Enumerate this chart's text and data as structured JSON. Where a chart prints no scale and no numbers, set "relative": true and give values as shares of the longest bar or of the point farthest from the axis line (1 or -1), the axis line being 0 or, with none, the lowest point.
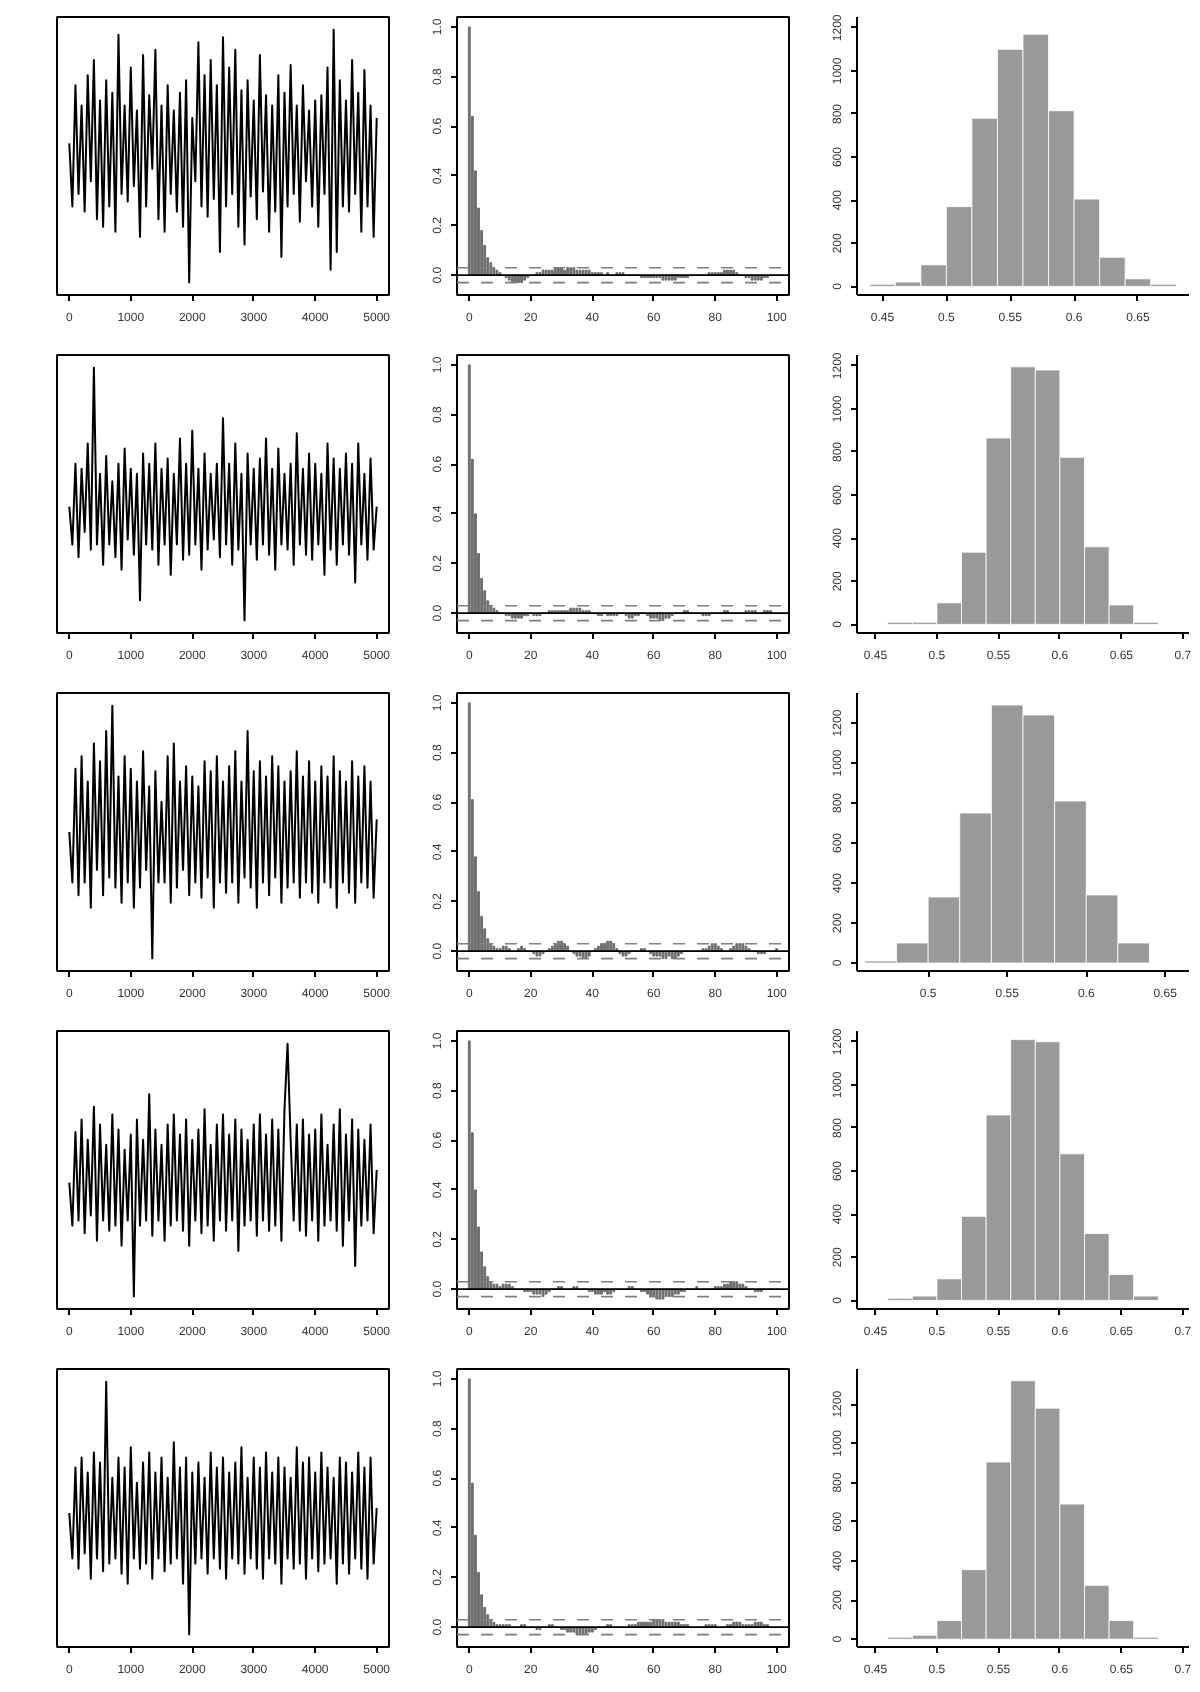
{
  "chart_data": [
    {
      "type": "line",
      "relative": true,
      "tick_labels": "x",
      "color": "#000000",
      "xlim": [
        -200,
        5200
      ],
      "xticks": [
        0,
        1000,
        2000,
        3000,
        4000,
        5000
      ],
      "x": [
        0,
        50,
        100,
        150,
        200,
        250,
        300,
        350,
        400,
        450,
        500,
        550,
        600,
        650,
        700,
        750,
        800,
        850,
        900,
        950,
        1000,
        1050,
        1100,
        1150,
        1200,
        1250,
        1300,
        1350,
        1400,
        1450,
        1500,
        1550,
        1600,
        1650,
        1700,
        1750,
        1800,
        1850,
        1900,
        1950,
        2000,
        2050,
        2100,
        2150,
        2200,
        2250,
        2300,
        2350,
        2400,
        2450,
        2500,
        2550,
        2600,
        2650,
        2700,
        2750,
        2800,
        2850,
        2900,
        2950,
        3000,
        3050,
        3100,
        3150,
        3200,
        3250,
        3300,
        3350,
        3400,
        3450,
        3500,
        3550,
        3600,
        3650,
        3700,
        3750,
        3800,
        3850,
        3900,
        3950,
        4000,
        4050,
        4100,
        4150,
        4200,
        4250,
        4300,
        4350,
        4400,
        4450,
        4500,
        4550,
        4600,
        4650,
        4700,
        4750,
        4800,
        4850,
        4900,
        4950,
        5000
      ],
      "values": [
        0.55,
        0.3,
        0.78,
        0.35,
        0.7,
        0.28,
        0.82,
        0.4,
        0.88,
        0.25,
        0.72,
        0.22,
        0.8,
        0.3,
        0.75,
        0.2,
        0.98,
        0.35,
        0.7,
        0.32,
        0.85,
        0.38,
        0.68,
        0.18,
        0.9,
        0.3,
        0.74,
        0.45,
        0.92,
        0.25,
        0.7,
        0.2,
        0.78,
        0.35,
        0.68,
        0.28,
        0.75,
        0.22,
        0.8,
        0.0,
        0.65,
        0.4,
        0.95,
        0.3,
        0.82,
        0.26,
        0.88,
        0.33,
        0.78,
        0.12,
        0.97,
        0.3,
        0.85,
        0.35,
        0.92,
        0.22,
        0.76,
        0.15,
        0.8,
        0.34,
        0.72,
        0.25,
        0.9,
        0.36,
        0.74,
        0.2,
        0.7,
        0.28,
        0.82,
        0.1,
        0.75,
        0.3,
        0.86,
        0.35,
        0.7,
        0.24,
        0.78,
        0.4,
        0.68,
        0.3,
        0.72,
        0.22,
        0.74,
        0.35,
        0.85,
        0.05,
        1.0,
        0.12,
        0.8,
        0.3,
        0.72,
        0.28,
        0.88,
        0.35,
        0.75,
        0.2,
        0.84,
        0.3,
        0.7,
        0.18,
        0.65
      ]
    },
    {
      "type": "bar",
      "color": "#6e6e6e",
      "xlim": [
        -4,
        104
      ],
      "xticks": [
        0,
        20,
        40,
        60,
        80,
        100
      ],
      "ylim": [
        -0.08,
        1.04
      ],
      "yticks": [
        {
          "value": 0,
          "label": "0.0"
        },
        {
          "value": 0.2,
          "label": "0.2"
        },
        {
          "value": 0.4,
          "label": "0.4"
        },
        {
          "value": 0.6,
          "label": "0.6"
        },
        {
          "value": 0.8,
          "label": "0.8"
        },
        {
          "value": 1,
          "label": "1.0"
        }
      ],
      "ref_lines": [
        {
          "axis": "y",
          "value": 0,
          "color": "#000000",
          "line_style": "solid"
        },
        {
          "axis": "y",
          "value": 0.03,
          "color": "#808080",
          "line_style": "dashed"
        },
        {
          "axis": "y",
          "value": -0.03,
          "color": "#808080",
          "line_style": "dashed"
        }
      ],
      "x": [
        0,
        1,
        2,
        3,
        4,
        5,
        6,
        7,
        8,
        9,
        10,
        11,
        12,
        13,
        14,
        15,
        16,
        17,
        18,
        19,
        20,
        21,
        22,
        23,
        24,
        25,
        26,
        27,
        28,
        29,
        30,
        31,
        32,
        33,
        34,
        35,
        36,
        37,
        38,
        39,
        40,
        41,
        42,
        43,
        44,
        45,
        46,
        47,
        48,
        49,
        50,
        51,
        52,
        53,
        54,
        55,
        56,
        57,
        58,
        59,
        60,
        61,
        62,
        63,
        64,
        65,
        66,
        67,
        68,
        69,
        70,
        71,
        72,
        73,
        74,
        75,
        76,
        77,
        78,
        79,
        80,
        81,
        82,
        83,
        84,
        85,
        86,
        87,
        88,
        89,
        90,
        91,
        92,
        93,
        94,
        95,
        96,
        97,
        98,
        99,
        100
      ],
      "values": [
        1.0,
        0.64,
        0.42,
        0.27,
        0.18,
        0.12,
        0.07,
        0.05,
        0.03,
        0.02,
        0.01,
        0.0,
        -0.01,
        -0.02,
        -0.03,
        -0.03,
        -0.03,
        -0.03,
        -0.02,
        -0.01,
        0.0,
        0.0,
        0.01,
        0.01,
        0.02,
        0.02,
        0.02,
        0.02,
        0.03,
        0.03,
        0.03,
        0.02,
        0.03,
        0.03,
        0.03,
        0.02,
        0.02,
        0.02,
        0.02,
        0.02,
        0.01,
        0.01,
        0.01,
        0.01,
        0.0,
        0.01,
        0.0,
        0.0,
        0.01,
        0.01,
        0.01,
        0.0,
        0.0,
        0.0,
        0.0,
        0.0,
        -0.01,
        -0.01,
        -0.01,
        -0.01,
        -0.01,
        -0.01,
        -0.01,
        -0.02,
        -0.02,
        -0.02,
        -0.02,
        -0.02,
        -0.01,
        -0.01,
        -0.01,
        -0.01,
        0.0,
        0.0,
        0.0,
        0.0,
        0.0,
        0.0,
        0.01,
        0.01,
        0.01,
        0.01,
        0.01,
        0.02,
        0.02,
        0.02,
        0.02,
        0.01,
        0.0,
        0.0,
        -0.01,
        -0.01,
        -0.02,
        -0.02,
        -0.02,
        -0.02,
        -0.01,
        -0.01,
        0.0,
        0.0,
        0.0
      ]
    },
    {
      "type": "histogram",
      "color": "#999999",
      "xlim": [
        0.43,
        0.69
      ],
      "xticks": [
        0.45,
        0.5,
        0.55,
        0.6,
        0.65
      ],
      "ylim": [
        -40,
        1250
      ],
      "yticks": [
        0,
        200,
        400,
        600,
        800,
        1000,
        1200
      ],
      "bins": [
        0.44,
        0.46,
        0.48,
        0.5,
        0.52,
        0.54,
        0.56,
        0.58,
        0.6,
        0.62,
        0.64,
        0.66,
        0.68
      ],
      "values": [
        10,
        20,
        100,
        370,
        780,
        1100,
        1170,
        815,
        405,
        135,
        35,
        10
      ]
    },
    {
      "type": "line",
      "relative": true,
      "tick_labels": "x",
      "color": "#000000",
      "xlim": [
        -200,
        5200
      ],
      "xticks": [
        0,
        1000,
        2000,
        3000,
        4000,
        5000
      ],
      "x": [
        0,
        50,
        100,
        150,
        200,
        250,
        300,
        350,
        400,
        450,
        500,
        550,
        600,
        650,
        700,
        750,
        800,
        850,
        900,
        950,
        1000,
        1050,
        1100,
        1150,
        1200,
        1250,
        1300,
        1350,
        1400,
        1450,
        1500,
        1550,
        1600,
        1650,
        1700,
        1750,
        1800,
        1850,
        1900,
        1950,
        2000,
        2050,
        2100,
        2150,
        2200,
        2250,
        2300,
        2350,
        2400,
        2450,
        2500,
        2550,
        2600,
        2650,
        2700,
        2750,
        2800,
        2850,
        2900,
        2950,
        3000,
        3050,
        3100,
        3150,
        3200,
        3250,
        3300,
        3350,
        3400,
        3450,
        3500,
        3550,
        3600,
        3650,
        3700,
        3750,
        3800,
        3850,
        3900,
        3950,
        4000,
        4050,
        4100,
        4150,
        4200,
        4250,
        4300,
        4350,
        4400,
        4450,
        4500,
        4550,
        4600,
        4650,
        4700,
        4750,
        4800,
        4850,
        4900,
        4950,
        5000
      ],
      "values": [
        0.45,
        0.3,
        0.62,
        0.25,
        0.6,
        0.35,
        0.7,
        0.28,
        1.0,
        0.3,
        0.58,
        0.22,
        0.65,
        0.3,
        0.55,
        0.25,
        0.62,
        0.2,
        0.68,
        0.32,
        0.6,
        0.26,
        0.58,
        0.08,
        0.66,
        0.3,
        0.62,
        0.28,
        0.7,
        0.22,
        0.6,
        0.3,
        0.64,
        0.18,
        0.58,
        0.3,
        0.72,
        0.24,
        0.62,
        0.26,
        0.75,
        0.3,
        0.6,
        0.2,
        0.66,
        0.28,
        0.58,
        0.32,
        0.62,
        0.25,
        0.8,
        0.3,
        0.62,
        0.22,
        0.7,
        0.28,
        0.58,
        0.0,
        0.66,
        0.3,
        0.6,
        0.24,
        0.64,
        0.3,
        0.72,
        0.26,
        0.6,
        0.2,
        0.68,
        0.3,
        0.58,
        0.28,
        0.62,
        0.22,
        0.74,
        0.3,
        0.6,
        0.26,
        0.66,
        0.24,
        0.62,
        0.3,
        0.58,
        0.18,
        0.7,
        0.28,
        0.64,
        0.22,
        0.6,
        0.3,
        0.66,
        0.26,
        0.62,
        0.15,
        0.7,
        0.3,
        0.58,
        0.24,
        0.64,
        0.28,
        0.45
      ]
    },
    {
      "type": "bar",
      "color": "#6e6e6e",
      "xlim": [
        -4,
        104
      ],
      "xticks": [
        0,
        20,
        40,
        60,
        80,
        100
      ],
      "ylim": [
        -0.08,
        1.04
      ],
      "yticks": [
        {
          "value": 0,
          "label": "0.0"
        },
        {
          "value": 0.2,
          "label": "0.2"
        },
        {
          "value": 0.4,
          "label": "0.4"
        },
        {
          "value": 0.6,
          "label": "0.6"
        },
        {
          "value": 0.8,
          "label": "0.8"
        },
        {
          "value": 1,
          "label": "1.0"
        }
      ],
      "ref_lines": [
        {
          "axis": "y",
          "value": 0,
          "color": "#000000",
          "line_style": "solid"
        },
        {
          "axis": "y",
          "value": 0.03,
          "color": "#808080",
          "line_style": "dashed"
        },
        {
          "axis": "y",
          "value": -0.03,
          "color": "#808080",
          "line_style": "dashed"
        }
      ],
      "x": [
        0,
        1,
        2,
        3,
        4,
        5,
        6,
        7,
        8,
        9,
        10,
        11,
        12,
        13,
        14,
        15,
        16,
        17,
        18,
        19,
        20,
        21,
        22,
        23,
        24,
        25,
        26,
        27,
        28,
        29,
        30,
        31,
        32,
        33,
        34,
        35,
        36,
        37,
        38,
        39,
        40,
        41,
        42,
        43,
        44,
        45,
        46,
        47,
        48,
        49,
        50,
        51,
        52,
        53,
        54,
        55,
        56,
        57,
        58,
        59,
        60,
        61,
        62,
        63,
        64,
        65,
        66,
        67,
        68,
        69,
        70,
        71,
        72,
        73,
        74,
        75,
        76,
        77,
        78,
        79,
        80,
        81,
        82,
        83,
        84,
        85,
        86,
        87,
        88,
        89,
        90,
        91,
        92,
        93,
        94,
        95,
        96,
        97,
        98,
        99,
        100
      ],
      "values": [
        1.0,
        0.62,
        0.4,
        0.24,
        0.14,
        0.09,
        0.05,
        0.03,
        0.02,
        0.01,
        0.0,
        0.0,
        -0.01,
        -0.01,
        -0.02,
        -0.02,
        -0.02,
        -0.02,
        -0.01,
        -0.01,
        0.0,
        -0.01,
        -0.01,
        -0.01,
        0.0,
        0.0,
        0.01,
        0.01,
        0.01,
        0.01,
        0.01,
        0.01,
        0.01,
        0.02,
        0.02,
        0.02,
        0.02,
        0.01,
        0.01,
        0.01,
        0.0,
        0.0,
        -0.01,
        -0.01,
        0.0,
        -0.01,
        -0.01,
        -0.01,
        -0.01,
        0.0,
        0.0,
        -0.01,
        -0.02,
        -0.02,
        -0.01,
        -0.01,
        0.0,
        0.0,
        -0.01,
        -0.02,
        -0.02,
        -0.02,
        -0.03,
        -0.03,
        -0.02,
        -0.02,
        -0.01,
        0.0,
        0.0,
        0.0,
        0.01,
        0.01,
        0.0,
        0.0,
        0.0,
        0.0,
        -0.01,
        -0.01,
        -0.01,
        0.0,
        0.0,
        0.0,
        0.0,
        0.01,
        0.01,
        0.0,
        0.0,
        0.0,
        0.0,
        0.0,
        0.01,
        0.01,
        0.01,
        0.01,
        0.0,
        0.0,
        0.01,
        0.01,
        0.01,
        0.0,
        0.0
      ]
    },
    {
      "type": "histogram",
      "color": "#999999",
      "xlim": [
        0.435,
        0.705
      ],
      "xticks": [
        0.45,
        0.5,
        0.55,
        0.6,
        0.65,
        0.7
      ],
      "ylim": [
        -40,
        1250
      ],
      "yticks": [
        0,
        200,
        400,
        600,
        800,
        1000,
        1200
      ],
      "bins": [
        0.46,
        0.48,
        0.5,
        0.52,
        0.54,
        0.56,
        0.58,
        0.6,
        0.62,
        0.64,
        0.66,
        0.68
      ],
      "values": [
        10,
        10,
        100,
        335,
        865,
        1195,
        1180,
        775,
        360,
        90,
        10
      ]
    },
    {
      "type": "line",
      "relative": true,
      "tick_labels": "x",
      "color": "#000000",
      "xlim": [
        -200,
        5200
      ],
      "xticks": [
        0,
        1000,
        2000,
        3000,
        4000,
        5000
      ],
      "x": [
        0,
        50,
        100,
        150,
        200,
        250,
        300,
        350,
        400,
        450,
        500,
        550,
        600,
        650,
        700,
        750,
        800,
        850,
        900,
        950,
        1000,
        1050,
        1100,
        1150,
        1200,
        1250,
        1300,
        1350,
        1400,
        1450,
        1500,
        1550,
        1600,
        1650,
        1700,
        1750,
        1800,
        1850,
        1900,
        1950,
        2000,
        2050,
        2100,
        2150,
        2200,
        2250,
        2300,
        2350,
        2400,
        2450,
        2500,
        2550,
        2600,
        2650,
        2700,
        2750,
        2800,
        2850,
        2900,
        2950,
        3000,
        3050,
        3100,
        3150,
        3200,
        3250,
        3300,
        3350,
        3400,
        3450,
        3500,
        3550,
        3600,
        3650,
        3700,
        3750,
        3800,
        3850,
        3900,
        3950,
        4000,
        4050,
        4100,
        4150,
        4200,
        4250,
        4300,
        4350,
        4400,
        4450,
        4500,
        4550,
        4600,
        4650,
        4700,
        4750,
        4800,
        4850,
        4900,
        4950,
        5000
      ],
      "values": [
        0.5,
        0.3,
        0.75,
        0.25,
        0.8,
        0.3,
        0.7,
        0.2,
        0.85,
        0.35,
        0.78,
        0.25,
        0.9,
        0.32,
        1.0,
        0.28,
        0.72,
        0.22,
        0.8,
        0.3,
        0.75,
        0.2,
        0.7,
        0.28,
        0.82,
        0.35,
        0.68,
        0.0,
        0.74,
        0.3,
        0.62,
        0.3,
        0.8,
        0.22,
        0.85,
        0.28,
        0.7,
        0.35,
        0.76,
        0.25,
        0.72,
        0.3,
        0.68,
        0.24,
        0.78,
        0.32,
        0.74,
        0.2,
        0.8,
        0.3,
        0.7,
        0.26,
        0.76,
        0.3,
        0.82,
        0.22,
        0.7,
        0.32,
        0.9,
        0.28,
        0.74,
        0.2,
        0.78,
        0.3,
        0.72,
        0.25,
        0.8,
        0.32,
        0.76,
        0.22,
        0.7,
        0.28,
        0.74,
        0.3,
        0.82,
        0.24,
        0.72,
        0.3,
        0.78,
        0.26,
        0.7,
        0.22,
        0.76,
        0.3,
        0.72,
        0.28,
        0.8,
        0.2,
        0.74,
        0.3,
        0.7,
        0.26,
        0.78,
        0.22,
        0.72,
        0.3,
        0.76,
        0.28,
        0.7,
        0.24,
        0.55
      ]
    },
    {
      "type": "bar",
      "color": "#6e6e6e",
      "xlim": [
        -4,
        104
      ],
      "xticks": [
        0,
        20,
        40,
        60,
        80,
        100
      ],
      "ylim": [
        -0.08,
        1.04
      ],
      "yticks": [
        {
          "value": 0,
          "label": "0.0"
        },
        {
          "value": 0.2,
          "label": "0.2"
        },
        {
          "value": 0.4,
          "label": "0.4"
        },
        {
          "value": 0.6,
          "label": "0.6"
        },
        {
          "value": 0.8,
          "label": "0.8"
        },
        {
          "value": 1,
          "label": "1.0"
        }
      ],
      "ref_lines": [
        {
          "axis": "y",
          "value": 0,
          "color": "#000000",
          "line_style": "solid"
        },
        {
          "axis": "y",
          "value": 0.03,
          "color": "#808080",
          "line_style": "dashed"
        },
        {
          "axis": "y",
          "value": -0.03,
          "color": "#808080",
          "line_style": "dashed"
        }
      ],
      "x": [
        0,
        1,
        2,
        3,
        4,
        5,
        6,
        7,
        8,
        9,
        10,
        11,
        12,
        13,
        14,
        15,
        16,
        17,
        18,
        19,
        20,
        21,
        22,
        23,
        24,
        25,
        26,
        27,
        28,
        29,
        30,
        31,
        32,
        33,
        34,
        35,
        36,
        37,
        38,
        39,
        40,
        41,
        42,
        43,
        44,
        45,
        46,
        47,
        48,
        49,
        50,
        51,
        52,
        53,
        54,
        55,
        56,
        57,
        58,
        59,
        60,
        61,
        62,
        63,
        64,
        65,
        66,
        67,
        68,
        69,
        70,
        71,
        72,
        73,
        74,
        75,
        76,
        77,
        78,
        79,
        80,
        81,
        82,
        83,
        84,
        85,
        86,
        87,
        88,
        89,
        90,
        91,
        92,
        93,
        94,
        95,
        96,
        97,
        98,
        99,
        100
      ],
      "values": [
        1.0,
        0.61,
        0.38,
        0.24,
        0.14,
        0.09,
        0.05,
        0.03,
        0.02,
        0.01,
        0.01,
        0.02,
        0.02,
        0.01,
        0.0,
        0.0,
        0.01,
        0.02,
        0.01,
        0.0,
        0.0,
        -0.01,
        -0.02,
        -0.02,
        -0.01,
        0.0,
        0.01,
        0.02,
        0.03,
        0.04,
        0.04,
        0.03,
        0.02,
        0.0,
        -0.01,
        -0.02,
        -0.02,
        -0.03,
        -0.03,
        -0.02,
        0.0,
        0.01,
        0.02,
        0.03,
        0.03,
        0.04,
        0.04,
        0.03,
        0.01,
        -0.01,
        -0.02,
        -0.02,
        -0.01,
        0.0,
        0.0,
        0.0,
        0.01,
        0.01,
        0.0,
        -0.01,
        -0.02,
        -0.02,
        -0.02,
        -0.03,
        -0.03,
        -0.02,
        -0.03,
        -0.03,
        -0.02,
        -0.01,
        0.0,
        0.0,
        0.0,
        0.0,
        0.0,
        0.0,
        0.01,
        0.01,
        0.02,
        0.03,
        0.03,
        0.02,
        0.01,
        0.0,
        0.0,
        0.01,
        0.02,
        0.03,
        0.03,
        0.03,
        0.02,
        0.01,
        0.0,
        0.0,
        -0.01,
        -0.01,
        -0.01,
        0.0,
        0.0,
        0.0,
        0.01
      ]
    },
    {
      "type": "histogram",
      "color": "#999999",
      "xlim": [
        0.455,
        0.665
      ],
      "xticks": [
        0.5,
        0.55,
        0.6,
        0.65
      ],
      "ylim": [
        -40,
        1350
      ],
      "yticks": [
        0,
        200,
        400,
        600,
        800,
        1000,
        1200
      ],
      "bins": [
        0.46,
        0.48,
        0.5,
        0.52,
        0.54,
        0.56,
        0.58,
        0.6,
        0.62,
        0.64
      ],
      "values": [
        10,
        100,
        330,
        750,
        1290,
        1240,
        810,
        340,
        100
      ]
    },
    {
      "type": "line",
      "relative": true,
      "tick_labels": "x",
      "color": "#000000",
      "xlim": [
        -200,
        5200
      ],
      "xticks": [
        0,
        1000,
        2000,
        3000,
        4000,
        5000
      ],
      "x": [
        0,
        50,
        100,
        150,
        200,
        250,
        300,
        350,
        400,
        450,
        500,
        550,
        600,
        650,
        700,
        750,
        800,
        850,
        900,
        950,
        1000,
        1050,
        1100,
        1150,
        1200,
        1250,
        1300,
        1350,
        1400,
        1450,
        1500,
        1550,
        1600,
        1650,
        1700,
        1750,
        1800,
        1850,
        1900,
        1950,
        2000,
        2050,
        2100,
        2150,
        2200,
        2250,
        2300,
        2350,
        2400,
        2450,
        2500,
        2550,
        2600,
        2650,
        2700,
        2750,
        2800,
        2850,
        2900,
        2950,
        3000,
        3050,
        3100,
        3150,
        3200,
        3250,
        3300,
        3350,
        3400,
        3450,
        3500,
        3550,
        3600,
        3650,
        3700,
        3750,
        3800,
        3850,
        3900,
        3950,
        4000,
        4050,
        4100,
        4150,
        4200,
        4250,
        4300,
        4350,
        4400,
        4450,
        4500,
        4550,
        4600,
        4650,
        4700,
        4750,
        4800,
        4850,
        4900,
        4950,
        5000
      ],
      "values": [
        0.45,
        0.28,
        0.65,
        0.3,
        0.7,
        0.25,
        0.62,
        0.32,
        0.75,
        0.22,
        0.68,
        0.3,
        0.6,
        0.26,
        0.72,
        0.28,
        0.66,
        0.2,
        0.58,
        0.3,
        0.64,
        0.0,
        0.7,
        0.28,
        0.62,
        0.3,
        0.8,
        0.24,
        0.66,
        0.3,
        0.6,
        0.22,
        0.68,
        0.28,
        0.72,
        0.3,
        0.64,
        0.26,
        0.7,
        0.2,
        0.62,
        0.3,
        0.66,
        0.25,
        0.74,
        0.28,
        0.6,
        0.22,
        0.68,
        0.3,
        0.72,
        0.26,
        0.64,
        0.3,
        0.7,
        0.18,
        0.66,
        0.28,
        0.62,
        0.3,
        0.68,
        0.24,
        0.72,
        0.3,
        0.64,
        0.26,
        0.7,
        0.28,
        0.66,
        0.22,
        0.74,
        1.0,
        0.62,
        0.3,
        0.68,
        0.26,
        0.7,
        0.24,
        0.64,
        0.3,
        0.66,
        0.22,
        0.72,
        0.28,
        0.6,
        0.3,
        0.68,
        0.26,
        0.74,
        0.2,
        0.64,
        0.3,
        0.7,
        0.12,
        0.66,
        0.28,
        0.62,
        0.3,
        0.68,
        0.25,
        0.5
      ]
    },
    {
      "type": "bar",
      "color": "#6e6e6e",
      "xlim": [
        -4,
        104
      ],
      "xticks": [
        0,
        20,
        40,
        60,
        80,
        100
      ],
      "ylim": [
        -0.08,
        1.04
      ],
      "yticks": [
        {
          "value": 0,
          "label": "0.0"
        },
        {
          "value": 0.2,
          "label": "0.2"
        },
        {
          "value": 0.4,
          "label": "0.4"
        },
        {
          "value": 0.6,
          "label": "0.6"
        },
        {
          "value": 0.8,
          "label": "0.8"
        },
        {
          "value": 1,
          "label": "1.0"
        }
      ],
      "ref_lines": [
        {
          "axis": "y",
          "value": 0,
          "color": "#000000",
          "line_style": "solid"
        },
        {
          "axis": "y",
          "value": 0.03,
          "color": "#808080",
          "line_style": "dashed"
        },
        {
          "axis": "y",
          "value": -0.03,
          "color": "#808080",
          "line_style": "dashed"
        }
      ],
      "x": [
        0,
        1,
        2,
        3,
        4,
        5,
        6,
        7,
        8,
        9,
        10,
        11,
        12,
        13,
        14,
        15,
        16,
        17,
        18,
        19,
        20,
        21,
        22,
        23,
        24,
        25,
        26,
        27,
        28,
        29,
        30,
        31,
        32,
        33,
        34,
        35,
        36,
        37,
        38,
        39,
        40,
        41,
        42,
        43,
        44,
        45,
        46,
        47,
        48,
        49,
        50,
        51,
        52,
        53,
        54,
        55,
        56,
        57,
        58,
        59,
        60,
        61,
        62,
        63,
        64,
        65,
        66,
        67,
        68,
        69,
        70,
        71,
        72,
        73,
        74,
        75,
        76,
        77,
        78,
        79,
        80,
        81,
        82,
        83,
        84,
        85,
        86,
        87,
        88,
        89,
        90,
        91,
        92,
        93,
        94,
        95,
        96,
        97,
        98,
        99,
        100
      ],
      "values": [
        1.0,
        0.63,
        0.4,
        0.25,
        0.15,
        0.09,
        0.05,
        0.03,
        0.02,
        0.02,
        0.01,
        0.02,
        0.02,
        0.02,
        0.01,
        0.0,
        0.0,
        0.0,
        -0.01,
        -0.01,
        -0.01,
        -0.02,
        -0.02,
        -0.02,
        -0.03,
        -0.02,
        -0.01,
        0.0,
        0.0,
        0.01,
        0.01,
        0.0,
        0.0,
        0.0,
        0.01,
        0.01,
        0.0,
        0.0,
        0.0,
        -0.01,
        -0.01,
        -0.02,
        -0.02,
        -0.02,
        -0.01,
        -0.02,
        -0.02,
        -0.01,
        0.0,
        0.0,
        0.0,
        0.0,
        0.01,
        0.01,
        0.0,
        0.0,
        -0.01,
        -0.01,
        -0.02,
        -0.03,
        -0.03,
        -0.04,
        -0.04,
        -0.04,
        -0.03,
        -0.03,
        -0.03,
        -0.02,
        -0.02,
        -0.01,
        -0.01,
        0.0,
        0.0,
        0.0,
        0.01,
        0.0,
        0.0,
        0.0,
        0.0,
        0.0,
        0.01,
        0.01,
        0.01,
        0.02,
        0.02,
        0.03,
        0.03,
        0.03,
        0.02,
        0.02,
        0.01,
        0.0,
        0.0,
        -0.01,
        -0.01,
        -0.01,
        0.0,
        0.0,
        0.0,
        0.0,
        0.0
      ]
    },
    {
      "type": "histogram",
      "color": "#999999",
      "xlim": [
        0.435,
        0.705
      ],
      "xticks": [
        0.45,
        0.5,
        0.55,
        0.6,
        0.65,
        0.7
      ],
      "ylim": [
        -40,
        1250
      ],
      "yticks": [
        0,
        200,
        400,
        600,
        800,
        1000,
        1200
      ],
      "bins": [
        0.46,
        0.48,
        0.5,
        0.52,
        0.54,
        0.56,
        0.58,
        0.6,
        0.62,
        0.64,
        0.66,
        0.68
      ],
      "values": [
        10,
        20,
        100,
        390,
        860,
        1210,
        1200,
        680,
        310,
        120,
        20
      ]
    },
    {
      "type": "line",
      "relative": true,
      "tick_labels": "x",
      "color": "#000000",
      "xlim": [
        -200,
        5200
      ],
      "xticks": [
        0,
        1000,
        2000,
        3000,
        4000,
        5000
      ],
      "x": [
        0,
        50,
        100,
        150,
        200,
        250,
        300,
        350,
        400,
        450,
        500,
        550,
        600,
        650,
        700,
        750,
        800,
        850,
        900,
        950,
        1000,
        1050,
        1100,
        1150,
        1200,
        1250,
        1300,
        1350,
        1400,
        1450,
        1500,
        1550,
        1600,
        1650,
        1700,
        1750,
        1800,
        1850,
        1900,
        1950,
        2000,
        2050,
        2100,
        2150,
        2200,
        2250,
        2300,
        2350,
        2400,
        2450,
        2500,
        2550,
        2600,
        2650,
        2700,
        2750,
        2800,
        2850,
        2900,
        2950,
        3000,
        3050,
        3100,
        3150,
        3200,
        3250,
        3300,
        3350,
        3400,
        3450,
        3500,
        3550,
        3600,
        3650,
        3700,
        3750,
        3800,
        3850,
        3900,
        3950,
        4000,
        4050,
        4100,
        4150,
        4200,
        4250,
        4300,
        4350,
        4400,
        4450,
        4500,
        4550,
        4600,
        4650,
        4700,
        4750,
        4800,
        4850,
        4900,
        4950,
        5000
      ],
      "values": [
        0.48,
        0.3,
        0.66,
        0.26,
        0.7,
        0.32,
        0.64,
        0.22,
        0.72,
        0.3,
        0.68,
        0.25,
        1.0,
        0.28,
        0.62,
        0.3,
        0.7,
        0.24,
        0.66,
        0.2,
        0.74,
        0.3,
        0.6,
        0.26,
        0.68,
        0.28,
        0.72,
        0.22,
        0.64,
        0.3,
        0.7,
        0.25,
        0.62,
        0.28,
        0.76,
        0.3,
        0.66,
        0.2,
        0.7,
        0.0,
        0.64,
        0.28,
        0.68,
        0.3,
        0.62,
        0.24,
        0.72,
        0.3,
        0.66,
        0.26,
        0.7,
        0.22,
        0.64,
        0.3,
        0.68,
        0.28,
        0.74,
        0.24,
        0.62,
        0.3,
        0.7,
        0.26,
        0.66,
        0.22,
        0.72,
        0.3,
        0.64,
        0.28,
        0.7,
        0.2,
        0.66,
        0.3,
        0.62,
        0.26,
        0.74,
        0.28,
        0.68,
        0.22,
        0.7,
        0.3,
        0.64,
        0.25,
        0.72,
        0.28,
        0.66,
        0.3,
        0.62,
        0.2,
        0.7,
        0.28,
        0.68,
        0.24,
        0.64,
        0.3,
        0.72,
        0.26,
        0.66,
        0.22,
        0.7,
        0.28,
        0.5
      ]
    },
    {
      "type": "bar",
      "color": "#6e6e6e",
      "xlim": [
        -4,
        104
      ],
      "xticks": [
        0,
        20,
        40,
        60,
        80,
        100
      ],
      "ylim": [
        -0.08,
        1.04
      ],
      "yticks": [
        {
          "value": 0,
          "label": "0.0"
        },
        {
          "value": 0.2,
          "label": "0.2"
        },
        {
          "value": 0.4,
          "label": "0.4"
        },
        {
          "value": 0.6,
          "label": "0.6"
        },
        {
          "value": 0.8,
          "label": "0.8"
        },
        {
          "value": 1,
          "label": "1.0"
        }
      ],
      "ref_lines": [
        {
          "axis": "y",
          "value": 0,
          "color": "#000000",
          "line_style": "solid"
        },
        {
          "axis": "y",
          "value": 0.03,
          "color": "#808080",
          "line_style": "dashed"
        },
        {
          "axis": "y",
          "value": -0.03,
          "color": "#808080",
          "line_style": "dashed"
        }
      ],
      "x": [
        0,
        1,
        2,
        3,
        4,
        5,
        6,
        7,
        8,
        9,
        10,
        11,
        12,
        13,
        14,
        15,
        16,
        17,
        18,
        19,
        20,
        21,
        22,
        23,
        24,
        25,
        26,
        27,
        28,
        29,
        30,
        31,
        32,
        33,
        34,
        35,
        36,
        37,
        38,
        39,
        40,
        41,
        42,
        43,
        44,
        45,
        46,
        47,
        48,
        49,
        50,
        51,
        52,
        53,
        54,
        55,
        56,
        57,
        58,
        59,
        60,
        61,
        62,
        63,
        64,
        65,
        66,
        67,
        68,
        69,
        70,
        71,
        72,
        73,
        74,
        75,
        76,
        77,
        78,
        79,
        80,
        81,
        82,
        83,
        84,
        85,
        86,
        87,
        88,
        89,
        90,
        91,
        92,
        93,
        94,
        95,
        96,
        97,
        98,
        99,
        100
      ],
      "values": [
        1.0,
        0.58,
        0.37,
        0.22,
        0.13,
        0.08,
        0.05,
        0.03,
        0.02,
        0.01,
        0.01,
        0.01,
        0.01,
        0.01,
        0.0,
        0.0,
        0.0,
        0.01,
        0.01,
        0.0,
        0.0,
        0.0,
        -0.01,
        -0.01,
        0.0,
        0.0,
        0.01,
        0.01,
        0.0,
        0.0,
        -0.01,
        -0.01,
        -0.02,
        -0.02,
        -0.02,
        -0.03,
        -0.03,
        -0.03,
        -0.03,
        -0.02,
        -0.02,
        -0.01,
        0.0,
        0.0,
        0.0,
        0.01,
        0.01,
        0.0,
        0.0,
        0.0,
        0.0,
        0.0,
        0.01,
        0.01,
        0.01,
        0.02,
        0.02,
        0.02,
        0.02,
        0.02,
        0.03,
        0.03,
        0.03,
        0.03,
        0.02,
        0.02,
        0.02,
        0.02,
        0.02,
        0.01,
        0.01,
        0.01,
        0.0,
        0.0,
        0.0,
        0.0,
        0.0,
        0.01,
        0.01,
        0.01,
        0.01,
        0.0,
        0.0,
        0.0,
        0.01,
        0.01,
        0.02,
        0.02,
        0.02,
        0.01,
        0.01,
        0.01,
        0.01,
        0.02,
        0.02,
        0.02,
        0.01,
        0.01,
        0.0,
        0.0,
        0.0
      ]
    },
    {
      "type": "histogram",
      "color": "#999999",
      "xlim": [
        0.435,
        0.705
      ],
      "xticks": [
        0.45,
        0.5,
        0.55,
        0.6,
        0.65,
        0.7
      ],
      "ylim": [
        -40,
        1380
      ],
      "yticks": [
        0,
        200,
        400,
        600,
        800,
        1000,
        1200
      ],
      "bins": [
        0.46,
        0.48,
        0.5,
        0.52,
        0.54,
        0.56,
        0.58,
        0.6,
        0.62,
        0.64,
        0.66,
        0.68
      ],
      "values": [
        10,
        20,
        95,
        355,
        905,
        1320,
        1180,
        690,
        275,
        95,
        10
      ]
    }
  ]
}
